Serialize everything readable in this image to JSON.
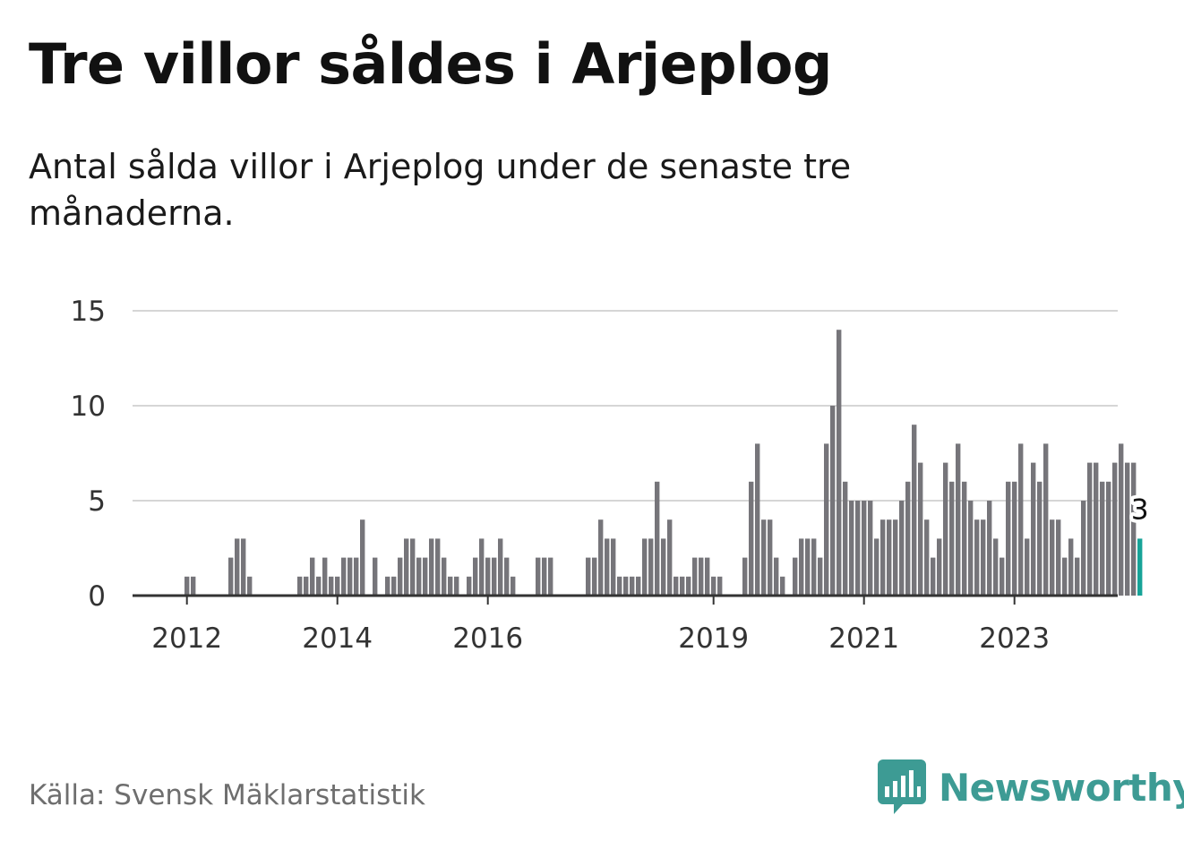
{
  "title": "Tre villor såldes i Arjeplog",
  "subtitle": "Antal sålda villor i Arjeplog under de senaste tre månaderna.",
  "source": "Källa: Svensk Mäklarstatistik",
  "brand": {
    "name": "Newsworthy",
    "icon": "newsworthy-logo-icon",
    "color": "#3d9b94"
  },
  "colors": {
    "bar": "#76757a",
    "highlight": "#17a398",
    "grid": "#d6d6d6",
    "axis": "#333333"
  },
  "chart_data": {
    "type": "bar",
    "title": "Tre villor såldes i Arjeplog",
    "xlabel": "",
    "ylabel": "",
    "ylim": [
      0,
      15
    ],
    "yticks": [
      0,
      5,
      10,
      15
    ],
    "xticks": [
      {
        "label": "2012",
        "index": 8
      },
      {
        "label": "2014",
        "index": 32
      },
      {
        "label": "2016",
        "index": 56
      },
      {
        "label": "2019",
        "index": 92
      },
      {
        "label": "2021",
        "index": 116
      },
      {
        "label": "2023",
        "index": 140
      }
    ],
    "period": "monthly",
    "start": "2011-01",
    "values": [
      0,
      0,
      0,
      0,
      0,
      0,
      0,
      0,
      1,
      1,
      0,
      0,
      0,
      0,
      0,
      2,
      3,
      3,
      1,
      0,
      0,
      0,
      0,
      0,
      0,
      0,
      1,
      1,
      2,
      1,
      2,
      1,
      1,
      2,
      2,
      2,
      4,
      0,
      2,
      0,
      1,
      1,
      2,
      3,
      3,
      2,
      2,
      3,
      3,
      2,
      1,
      1,
      0,
      1,
      2,
      3,
      2,
      2,
      3,
      2,
      1,
      0,
      0,
      0,
      2,
      2,
      2,
      0,
      0,
      0,
      0,
      0,
      2,
      2,
      4,
      3,
      3,
      1,
      1,
      1,
      1,
      3,
      3,
      6,
      3,
      4,
      1,
      1,
      1,
      2,
      2,
      2,
      1,
      1,
      0,
      0,
      0,
      2,
      6,
      8,
      4,
      4,
      2,
      1,
      0,
      2,
      3,
      3,
      3,
      2,
      8,
      10,
      14,
      6,
      5,
      5,
      5,
      5,
      3,
      4,
      4,
      4,
      5,
      6,
      9,
      7,
      4,
      2,
      3,
      7,
      6,
      8,
      6,
      5,
      4,
      4,
      5,
      3,
      2,
      6,
      6,
      8,
      3,
      7,
      6,
      8,
      4,
      4,
      2,
      3,
      2,
      5,
      7,
      7,
      6,
      6,
      7,
      8,
      7,
      7,
      3
    ],
    "highlight_last": true,
    "annotation": {
      "label": "3",
      "target": "last"
    }
  }
}
